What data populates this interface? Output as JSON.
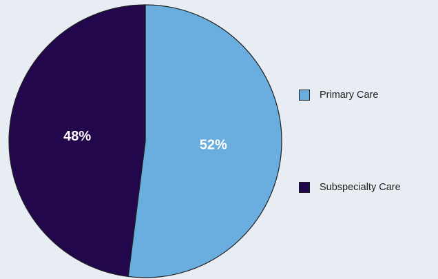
{
  "chart_data": {
    "type": "pie",
    "title": "",
    "slices": [
      {
        "label": "Primary Care",
        "value": 52,
        "display": "52%",
        "color": "#6aaee0"
      },
      {
        "label": "Subspecialty Care",
        "value": 48,
        "display": "48%",
        "color": "#22074d"
      }
    ],
    "legend_position": "right",
    "outline_color": "#1f1f1f"
  }
}
